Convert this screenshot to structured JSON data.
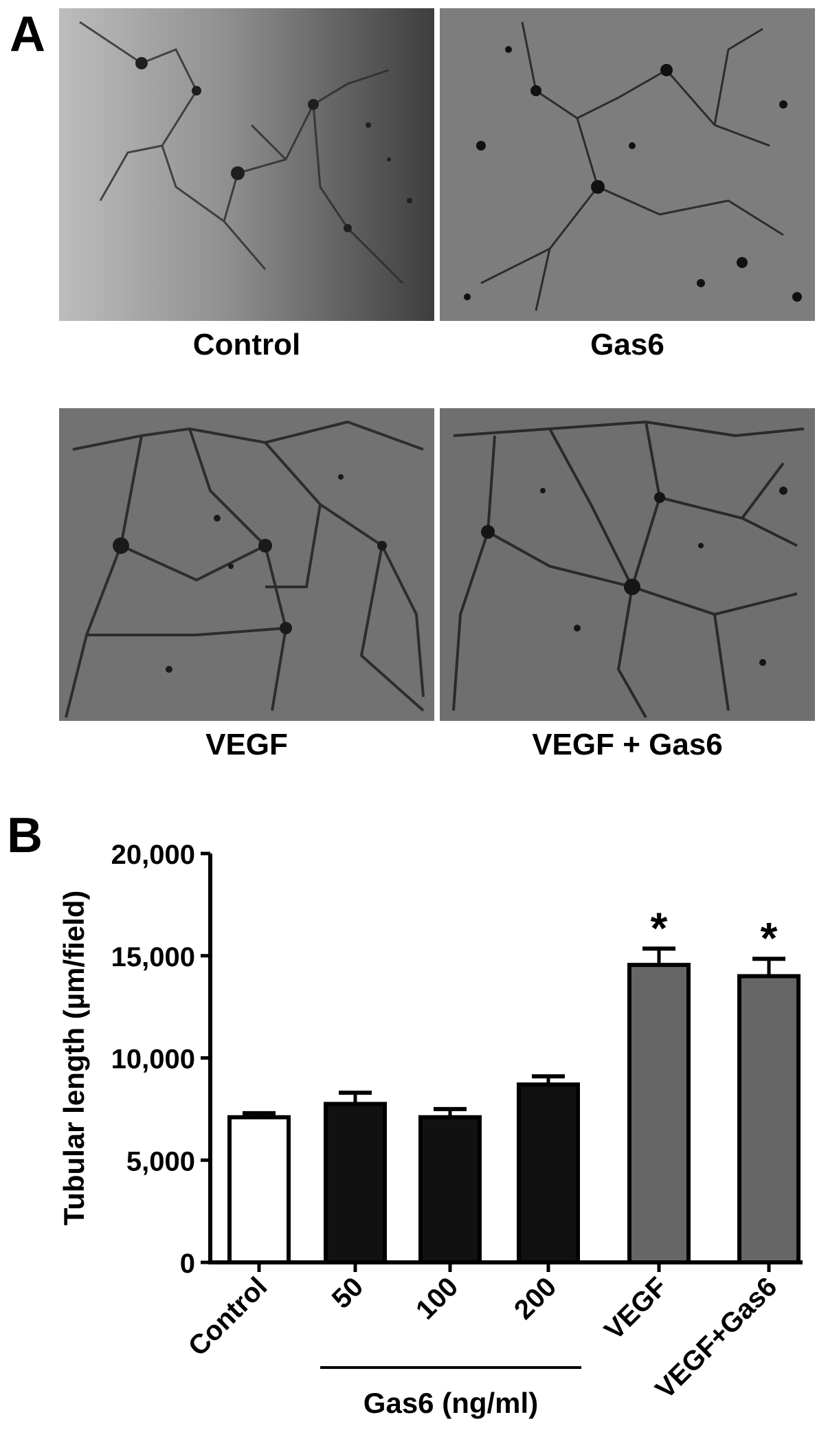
{
  "panel_a": {
    "letter": "A",
    "images": [
      {
        "label": "Control"
      },
      {
        "label": "Gas6"
      },
      {
        "label": "VEGF"
      },
      {
        "label": "VEGF + Gas6"
      }
    ]
  },
  "panel_b": {
    "letter": "B"
  },
  "chart_data": {
    "type": "bar",
    "ylabel": "Tubular length (µm/field)",
    "ylim": [
      0,
      20000
    ],
    "yticks": [
      0,
      5000,
      10000,
      15000,
      20000
    ],
    "ytick_labels": [
      "0",
      "5,000",
      "10,000",
      "15,000",
      "20,000"
    ],
    "categories": [
      "Control",
      "50",
      "100",
      "200",
      "VEGF",
      "VEGF+Gas6"
    ],
    "values": [
      7100,
      7750,
      7100,
      8700,
      14550,
      14000
    ],
    "errors": [
      200,
      550,
      400,
      400,
      800,
      850
    ],
    "colors": [
      "#ffffff",
      "#111111",
      "#111111",
      "#111111",
      "#666666",
      "#666666"
    ],
    "annotations": [
      "",
      "",
      "",
      "",
      "*",
      "*"
    ],
    "group_label": "Gas6 (ng/ml)"
  }
}
